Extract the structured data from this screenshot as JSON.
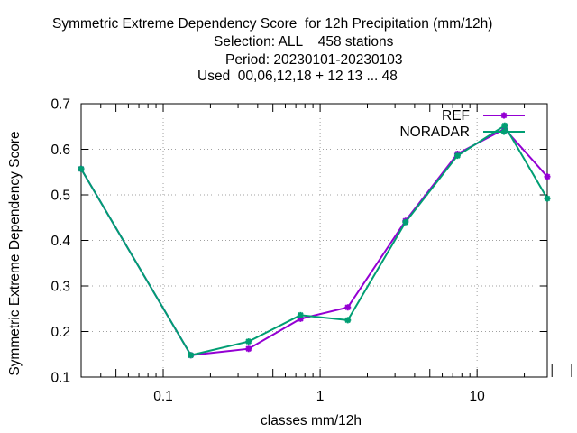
{
  "title_lines": [
    "Symmetric Extreme Dependency Score  for 12h Precipitation (mm/12h)",
    "Selection: ALL    458 stations",
    "Period: 20230101-20230103",
    "Used  00,06,12,18 + 12 13 ... 48"
  ],
  "chart_data": {
    "type": "line",
    "title": "Symmetric Extreme Dependency Score  for 12h Precipitation (mm/12h)",
    "subtitle": [
      "Selection: ALL    458 stations",
      "Period: 20230101-20230103",
      "Used  00,06,12,18 + 12 13 ... 48"
    ],
    "xlabel": "classes mm/12h",
    "ylabel": "Symmetric Extreme Dependency Score",
    "x_scale": "log",
    "xlim": [
      0.03,
      28
    ],
    "ylim": [
      0.1,
      0.7
    ],
    "x_ticks": [
      0.1,
      1,
      10
    ],
    "x_tick_labels": [
      "0.1",
      "1",
      "10"
    ],
    "y_ticks": [
      0.1,
      0.2,
      0.3,
      0.4,
      0.5,
      0.6,
      0.7
    ],
    "y_tick_labels": [
      "0.1",
      "0.2",
      "0.3",
      "0.4",
      "0.5",
      "0.6",
      "0.7"
    ],
    "grid": true,
    "legend_position": "top-right",
    "x": [
      0.03,
      0.15,
      0.35,
      0.75,
      1.5,
      3.5,
      7.5,
      15,
      28
    ],
    "series": [
      {
        "name": "REF",
        "color": "#9400d3",
        "values": [
          0.557,
          0.148,
          0.162,
          0.228,
          0.253,
          0.443,
          0.59,
          0.645,
          0.54
        ]
      },
      {
        "name": "NORADAR",
        "color": "#009e73",
        "values": [
          0.557,
          0.148,
          0.178,
          0.236,
          0.225,
          0.44,
          0.586,
          0.652,
          0.492
        ]
      }
    ]
  }
}
